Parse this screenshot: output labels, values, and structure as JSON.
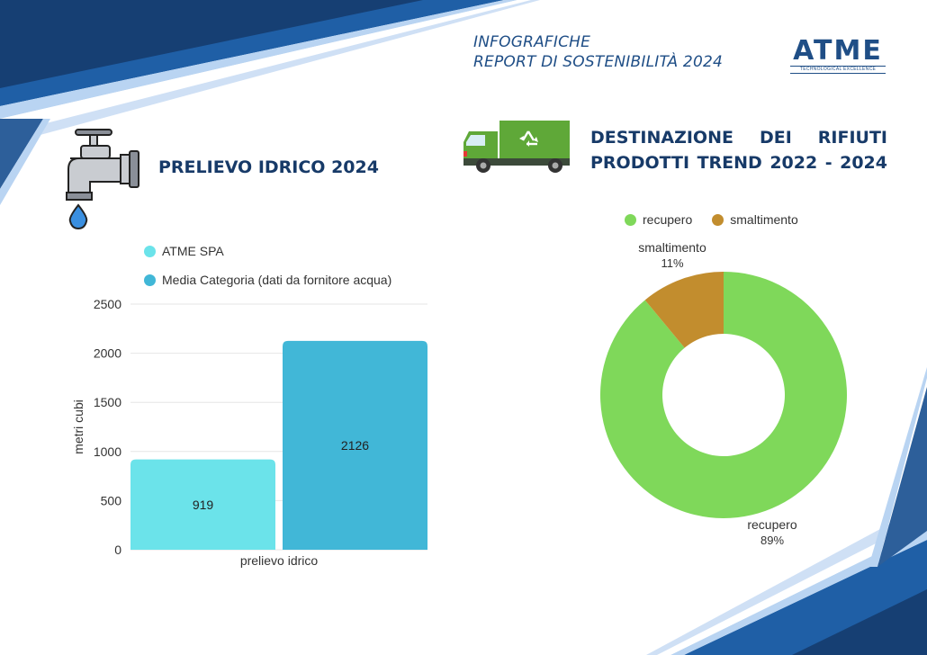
{
  "header": {
    "line1": "INFOGRAFICHE",
    "line2": "REPORT DI SOSTENIBILITÀ 2024"
  },
  "logo": {
    "brand": "ATME",
    "tagline": "TECHNOLOGICAL EXCELLENCE"
  },
  "sections": {
    "water_title": "PRELIEVO IDRICO 2024",
    "waste_title_line1": "DESTINAZIONE DEI RIFIUTI",
    "waste_title_line2": "PRODOTTI TREND 2022 - 2024"
  },
  "icons": {
    "water": "water-tap-icon",
    "waste": "garbage-truck-recycling-icon"
  },
  "colors": {
    "primary": "#1f4e86",
    "title": "#173a68",
    "atme_spa": "#6be3ea",
    "media_categoria": "#41b7d7",
    "recupero": "#7fd85a",
    "smaltimento": "#c28d2e"
  },
  "chart_data": [
    {
      "type": "bar",
      "categories": [
        "prelievo idrico"
      ],
      "series": [
        {
          "name": "ATME SPA",
          "values": [
            919
          ],
          "color": "#6be3ea"
        },
        {
          "name": "Media Categoria (dati da fornitore acqua)",
          "values": [
            2126
          ],
          "color": "#41b7d7"
        }
      ],
      "xlabel": "prelievo idrico",
      "ylabel": "metri cubi",
      "ylim": [
        0,
        2500
      ],
      "yticks": [
        0,
        500,
        1000,
        1500,
        2000,
        2500
      ],
      "data_labels": [
        "919",
        "2126"
      ],
      "grid": true,
      "legend_position": "top-left"
    },
    {
      "type": "pie",
      "donut": true,
      "slices": [
        {
          "label": "recupero",
          "value": 89,
          "pct_label": "89%",
          "color": "#7fd85a"
        },
        {
          "label": "smaltimento",
          "value": 11,
          "pct_label": "11%",
          "color": "#c28d2e"
        }
      ],
      "legend_position": "top"
    }
  ]
}
